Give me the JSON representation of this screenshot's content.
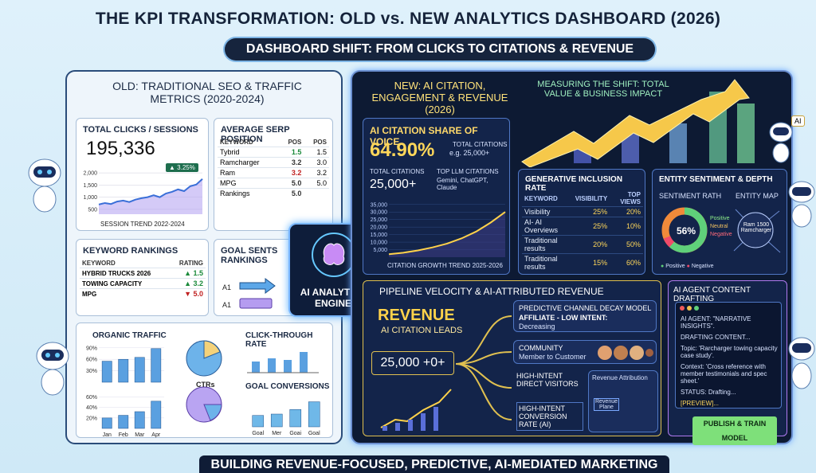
{
  "title": "THE KPI TRANSFORMATION: OLD vs. NEW ANALYTICS DASHBOARD (2026)",
  "subtitle": "DASHBOARD SHIFT: FROM CLICKS TO CITATIONS & REVENUE",
  "footer": "BUILDING REVENUE-FOCUSED, PREDICTIVE, AI-MEDIATED MARKETING",
  "engine": "AI ANALYTICS ENGINE",
  "old": {
    "header": "OLD: TRADITIONAL SEO & TRAFFIC METRICS (2020-2024)",
    "clicks": {
      "title": "TOTAL CLICKS / SESSIONS",
      "value": "195,336",
      "badge": "▲ 3.25%",
      "caption": "SESSION TREND 2022-2024",
      "chart": {
        "ylim": [
          300,
          2200
        ],
        "yticks": [
          {
            "value": 2000,
            "label": "2,000"
          },
          {
            "value": 1500,
            "label": "1,500"
          },
          {
            "value": 1000,
            "label": "1,000"
          },
          500
        ],
        "values": [
          700,
          760,
          720,
          820,
          860,
          800,
          900,
          960,
          1000,
          1080,
          1000,
          1150,
          1220,
          1320,
          1250,
          1450,
          1520,
          1750
        ]
      }
    },
    "serp": {
      "title": "AVERAGE SERP POSITION",
      "columns": [
        "KEYWORD",
        "POS",
        "POS"
      ],
      "rows": [
        [
          "Tybrid",
          "1.5",
          "1.5"
        ],
        [
          "Ramcharger",
          "3.2",
          "3.0"
        ],
        [
          "Ram",
          "3.2",
          "3.2"
        ],
        [
          "MPG",
          "5.0",
          "5.0"
        ],
        [
          "Rankings",
          "5.0"
        ]
      ]
    },
    "rankings": {
      "title": "KEYWORD RANKINGS",
      "columns": [
        "KEYWORD",
        "RATING"
      ],
      "rows": [
        [
          "HYBRID TRUCKS 2026",
          "▲ 1.5"
        ],
        [
          "TOWING CAPACITY",
          "▲ 3.2"
        ],
        [
          "MPG",
          "▼ 5.0"
        ]
      ]
    },
    "goal": {
      "title": "GOAL SENTS RANKINGS",
      "labels": [
        "A1",
        "A1"
      ]
    },
    "organic_traffic": {
      "title": "ORGANIC TRAFFIC",
      "categories": [
        "Jan",
        "Feb",
        "Mar",
        "Apr"
      ],
      "charts": [
        {
          "ylim": [
            0,
            100
          ],
          "yticks": [
            {
              "value": 90,
              "label": "90%"
            },
            {
              "value": 60,
              "label": "60%"
            },
            {
              "value": 30,
              "label": "30%"
            }
          ],
          "values": [
            55,
            60,
            65,
            88
          ]
        },
        {
          "ylim": [
            0,
            70
          ],
          "yticks": [
            {
              "value": 60,
              "label": "60%"
            },
            {
              "value": 40,
              "label": "40%"
            },
            {
              "value": 20,
              "label": "20%"
            }
          ],
          "values": [
            20,
            25,
            32,
            52
          ]
        }
      ]
    },
    "ctr": {
      "title": "CLICK-THROUGH RATE",
      "label": "CTRs"
    },
    "conversions": {
      "title": "GOAL CONVERSIONS",
      "categories": [
        "Goal",
        "Mer",
        "Goai",
        "Goal"
      ],
      "ylim": [
        0,
        70
      ],
      "values": [
        25,
        28,
        38,
        55
      ]
    }
  },
  "new": {
    "header": "NEW: AI CITATION, ENGAGEMENT & REVENUE (2026)",
    "measuring": "MEASURING THE SHIFT: TOTAL VALUE & BUSINESS IMPACT",
    "sov": {
      "title": "AI CITATION SHARE OF VOICE",
      "value": "64.90%",
      "total_label": "TOTAL CITATIONS",
      "total_eg": "e.g. 25,000+",
      "total_label2": "TOTAL CITATIONS",
      "total2": "25,000+",
      "llm_label": "TOP LLM CITATIONS",
      "llm": "Gemini, ChatGPT, Claude",
      "caption": "CITATION GROWTH TREND 2025-2026",
      "chart": {
        "ylim": [
          0,
          37000
        ],
        "yticks": [
          {
            "value": 35000,
            "label": "35,000"
          },
          {
            "value": 30000,
            "label": "30,000"
          },
          {
            "value": 25000,
            "label": "25,000"
          },
          {
            "value": 20000,
            "label": "20,000"
          },
          {
            "value": 15000,
            "label": "15,000"
          },
          {
            "value": 10000,
            "label": "10,000"
          },
          {
            "value": 5000,
            "label": "5,000"
          }
        ],
        "values": [
          2000,
          3000,
          4500,
          6500,
          9000,
          12500,
          17000,
          23000,
          30000
        ]
      }
    },
    "inclusion": {
      "title": "GENERATIVE INCLUSION RATE",
      "columns": [
        "KEYWORD",
        "VISIBILITY",
        "TOP VIEWS"
      ],
      "rows": [
        [
          "Visibility",
          "25%",
          "20%"
        ],
        [
          "AI- AI Overviews",
          "25%",
          "10%"
        ],
        [
          "Traditional results",
          "20%",
          "50%"
        ],
        [
          "Traditional results",
          "15%",
          "60%"
        ]
      ]
    },
    "sentiment": {
      "title": "ENTITY SENTIMENT & DEPTH",
      "path_label": "SENTIMENT RATH",
      "map_label": "ENTITY MAP",
      "donut": "56%",
      "donut_legend": [
        "Positive",
        "Neutral",
        "Negative"
      ],
      "entity": "Ram 1500 Ramcharger",
      "legend": [
        "Positive",
        "Negative"
      ]
    },
    "pipeline": {
      "title": "PIPELINE VELOCITY & AI-ATTRIBUTED REVENUE",
      "revenue": "REVENUE",
      "leads": "AI CITATION LEADS",
      "leads_value": "25,000 +0+",
      "decay": "PREDICTIVE CHANNEL DECAY MODEL",
      "affiliate": "AFFILIATE - LOW INTENT:",
      "decreasing": "Decreasing",
      "community": "COMMUNITY",
      "community_sub": "Member to Customer",
      "direct": "HIGH-INTENT DIRECT VISITORS",
      "attribution": "Revenue Attribution",
      "plane": "Revenue Plane",
      "conversion": "HIGH-INTENT CONVERSION RATE (AI)"
    },
    "agent": {
      "title": "AI AGENT CONTENT DRAFTING",
      "lines": [
        "AI AGENT: \"NARRATIVE INSIGHTS\".",
        "DRAFTING CONTENT...",
        "Topic: 'Rarcharger towing capacity case study'.",
        "Context: 'Cross reference with member testimonials and spec sheet.'",
        "STATUS: Drafting...",
        "[PREVIEW]..."
      ],
      "button": "PUBLISH & TRAIN MODEL"
    },
    "ai_tag": "AI"
  }
}
